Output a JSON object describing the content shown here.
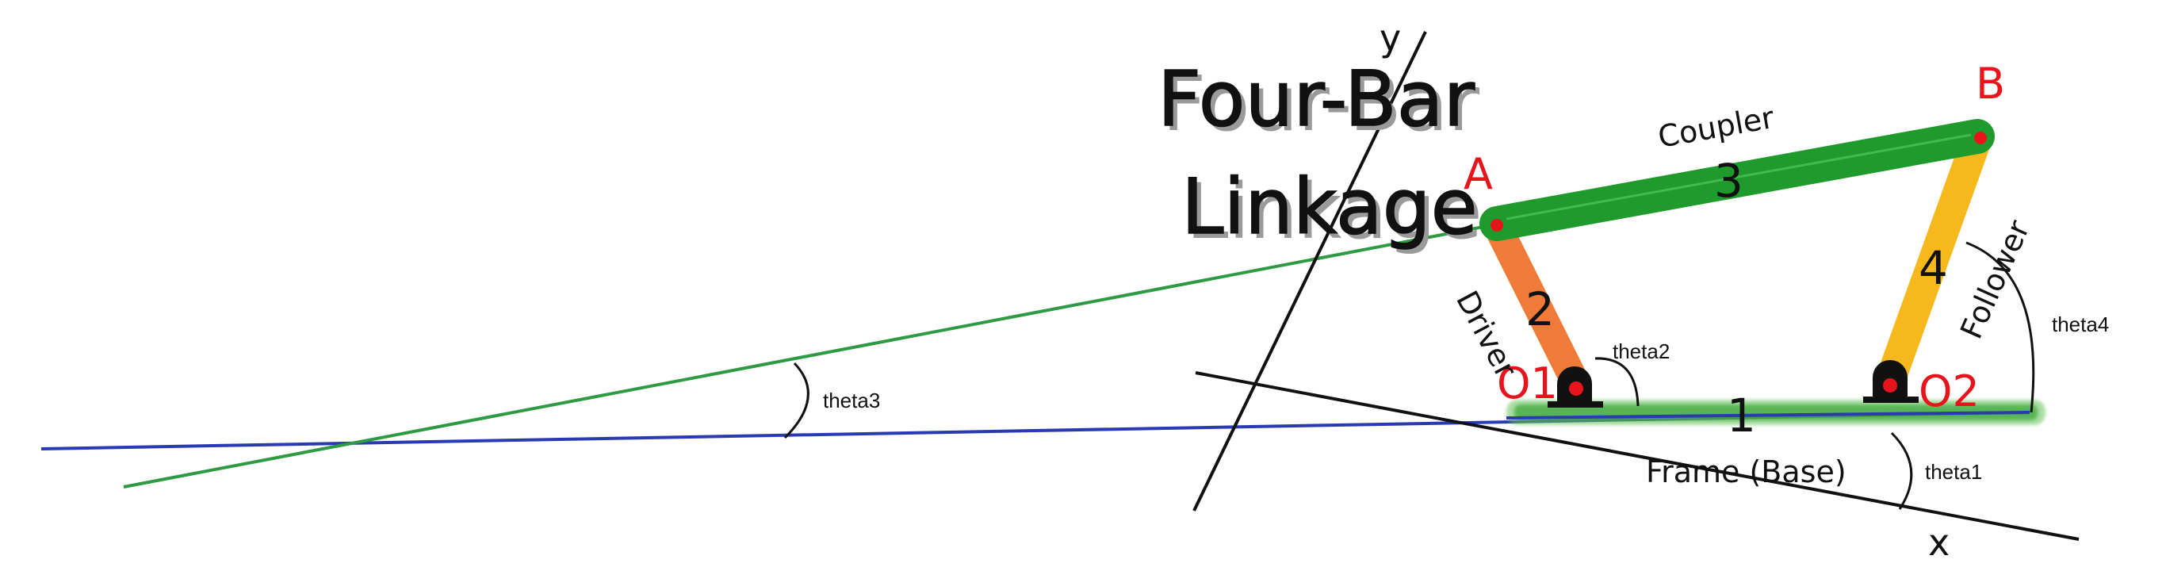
{
  "title": {
    "line1": "Four-Bar",
    "line2": "Linkage"
  },
  "links": {
    "frame": {
      "number": "1",
      "name": "Frame (Base)"
    },
    "driver": {
      "number": "2",
      "name": "Driver"
    },
    "coupler": {
      "number": "3",
      "name": "Coupler"
    },
    "follower": {
      "number": "4",
      "name": "Follower"
    }
  },
  "points": {
    "a": "A",
    "b": "B",
    "o1": "O1",
    "o2": "O2"
  },
  "axes": {
    "x": "x",
    "y": "y"
  },
  "angles": {
    "theta1": "theta1",
    "theta2": "theta2",
    "theta3": "theta3",
    "theta4": "theta4"
  },
  "colors": {
    "driver": "#f07a38",
    "coupler": "#1f9a2c",
    "follower": "#f6b81c",
    "ground": "#3ea83a",
    "point": "#e8141c",
    "reference_line": "#2a3ab0",
    "extension_line": "#2e9a44"
  }
}
